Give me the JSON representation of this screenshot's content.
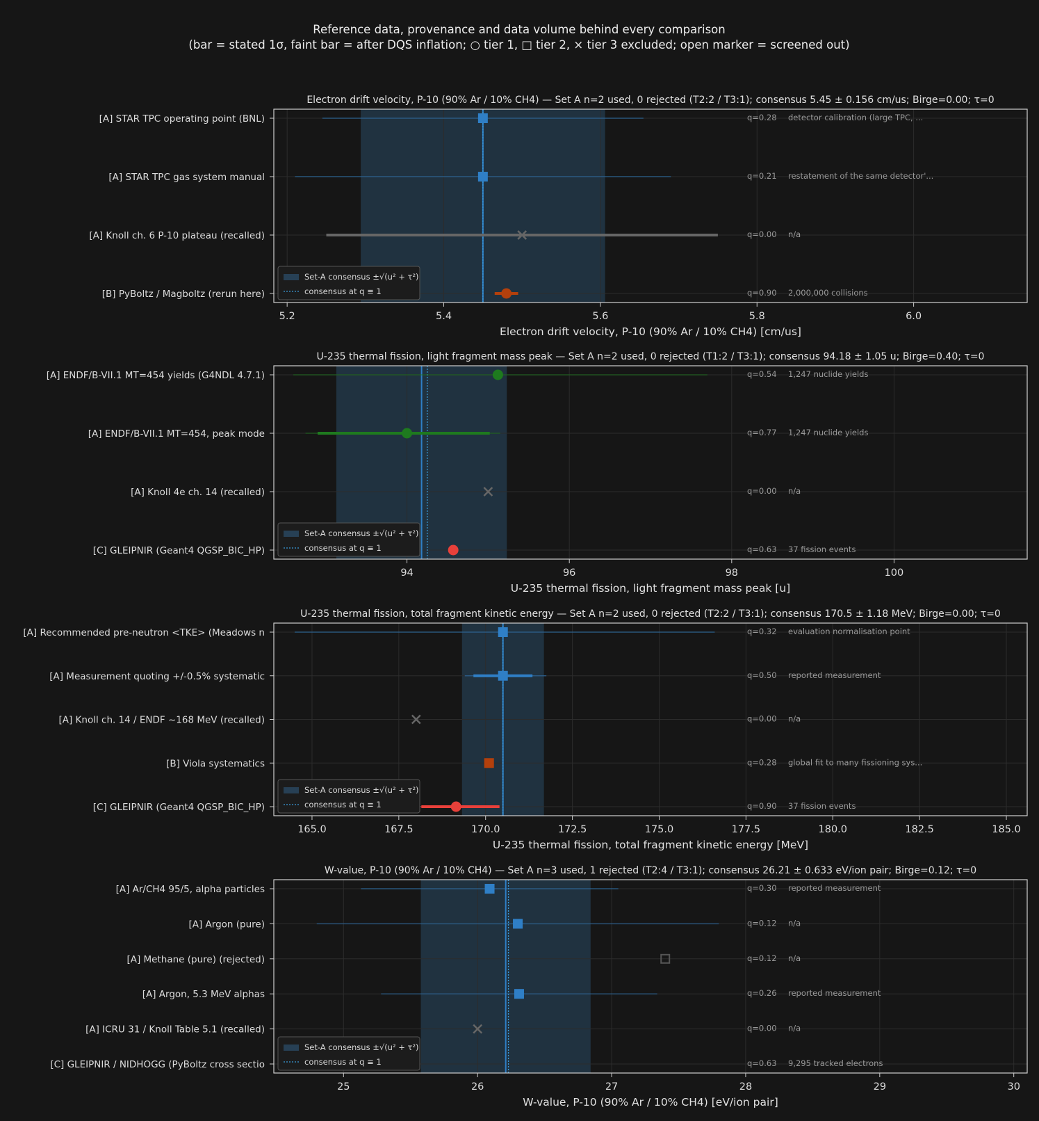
{
  "figure": {
    "title_line1": "Reference data, provenance and data volume behind every comparison",
    "title_line2": "(bar = stated 1σ, faint bar = after DQS inflation; ○ tier 1, □ tier 2, × tier 3 excluded; open marker = screened out)"
  },
  "legend": {
    "band_label": "Set-A consensus ±√(u² + τ²)",
    "line_label": "consensus at q ≡ 1"
  },
  "colors": {
    "background": "#161616",
    "tier_A": "#2f7fc6",
    "tier_B": "#b3400c",
    "tier_C": "#e8403a",
    "tier1_green": "#1e7a1e",
    "excluded": "#555555",
    "band": "#2a4a64"
  },
  "chart_data": [
    {
      "type": "forest",
      "title": "Electron drift velocity, P-10 (90% Ar / 10% CH4) — Set A n=2 used, 0 rejected (T2:2 / T3:1);  consensus 5.45 ± 0.156 cm/us;  Birge=0.00;  τ=0",
      "xlabel": "Electron drift velocity, P-10 (90% Ar / 10% CH4)  [cm/us]",
      "xlim": [
        5.183,
        6.145
      ],
      "xticks": [
        5.2,
        5.4,
        5.6,
        5.8,
        6.0
      ],
      "tick_labels": [
        "5.2",
        "5.4",
        "5.6",
        "5.8",
        "6.0"
      ],
      "consensus": 5.45,
      "consensus_unc": 0.156,
      "consensus_q1": 5.45,
      "grid": true,
      "legend_loc": "lower-left",
      "rows": [
        {
          "label": "[A] STAR TPC operating point (BNL)",
          "value": 5.45,
          "err": null,
          "inflated": [
            5.245,
            5.655
          ],
          "marker": "square",
          "color": "#2f7fc6",
          "q": "q=0.28",
          "note": "detector calibration (large TPC, ..."
        },
        {
          "label": "[A] STAR TPC gas system manual",
          "value": 5.45,
          "err": null,
          "inflated": [
            5.21,
            5.69
          ],
          "marker": "square",
          "color": "#2f7fc6",
          "q": "q=0.21",
          "note": "restatement of the same detector'..."
        },
        {
          "label": "[A] Knoll ch. 6 P-10 plateau (recalled)",
          "value": 5.5,
          "err": [
            5.25,
            5.75
          ],
          "inflated": null,
          "marker": "x",
          "color": "#666666",
          "q": "q=0.00",
          "note": "n/a"
        },
        {
          "label": "[B] PyBoltz / Magboltz (rerun here)",
          "value": 5.48,
          "err": [
            5.465,
            5.495
          ],
          "inflated": null,
          "marker": "circle",
          "color": "#b3400c",
          "q": "q=0.90",
          "note": "2,000,000 collisions"
        }
      ]
    },
    {
      "type": "forest",
      "title": "U-235 thermal fission, light fragment mass peak — Set A n=2 used, 0 rejected (T1:2 / T3:1);  consensus 94.18 ± 1.05 u;  Birge=0.40;  τ=0",
      "xlabel": "U-235 thermal fission, light fragment mass peak  [u]",
      "xlim": [
        92.36,
        101.64
      ],
      "xticks": [
        94,
        96,
        98,
        100
      ],
      "tick_labels": [
        "94",
        "96",
        "98",
        "100"
      ],
      "consensus": 94.18,
      "consensus_unc": 1.05,
      "consensus_q1": 94.25,
      "grid": true,
      "legend_loc": "lower-left",
      "rows": [
        {
          "label": "[A] ENDF/B-VII.1 MT=454 yields (G4NDL 4.7.1)",
          "value": 95.12,
          "err": null,
          "inflated": [
            92.6,
            97.7
          ],
          "marker": "circle",
          "color": "#1e7a1e",
          "q": "q=0.54",
          "note": "1,247 nuclide yields"
        },
        {
          "label": "[A] ENDF/B-VII.1 MT=454, peak mode",
          "value": 94.0,
          "err": [
            92.9,
            95.02
          ],
          "inflated": [
            92.75,
            95.15
          ],
          "marker": "circle",
          "color": "#1e7a1e",
          "q": "q=0.77",
          "note": "1,247 nuclide yields"
        },
        {
          "label": "[A] Knoll 4e ch. 14 (recalled)",
          "value": 95.0,
          "err": null,
          "inflated": null,
          "marker": "x",
          "color": "#666666",
          "q": "q=0.00",
          "note": "n/a"
        },
        {
          "label": "[C] GLEIPNIR (Geant4 QGSP_BIC_HP)",
          "value": 94.57,
          "err": null,
          "inflated": null,
          "marker": "circle",
          "color": "#e8403a",
          "q": "q=0.63",
          "note": "37 fission events"
        }
      ]
    },
    {
      "type": "forest",
      "title": "U-235 thermal fission, total fragment kinetic energy — Set A n=2 used, 0 rejected (T2:2 / T3:1);  consensus 170.5 ± 1.18 MeV;  Birge=0.00;  τ=0",
      "xlabel": "U-235 thermal fission, total fragment kinetic energy  [MeV]",
      "xlim": [
        163.9,
        185.6
      ],
      "xticks": [
        165,
        167.5,
        170,
        172.5,
        175,
        177.5,
        180,
        182.5,
        185
      ],
      "tick_labels": [
        "165.0",
        "167.5",
        "170.0",
        "172.5",
        "175.0",
        "177.5",
        "180.0",
        "182.5",
        "185.0"
      ],
      "consensus": 170.5,
      "consensus_unc": 1.18,
      "consensus_q1": 170.5,
      "grid": true,
      "legend_loc": "lower-left",
      "rows": [
        {
          "label": "[A] Recommended pre-neutron <TKE> (Meadows n",
          "value": 170.5,
          "err": null,
          "inflated": [
            164.5,
            176.6
          ],
          "marker": "square",
          "color": "#2f7fc6",
          "q": "q=0.32",
          "note": "evaluation normalisation point"
        },
        {
          "label": "[A] Measurement quoting +/-0.5% systematic",
          "value": 170.5,
          "err": [
            169.65,
            171.35
          ],
          "inflated": [
            169.4,
            171.75
          ],
          "marker": "square",
          "color": "#2f7fc6",
          "q": "q=0.50",
          "note": "reported measurement"
        },
        {
          "label": "[A] Knoll ch. 14 / ENDF ~168 MeV (recalled)",
          "value": 168.0,
          "err": null,
          "inflated": null,
          "marker": "x",
          "color": "#666666",
          "q": "q=0.00",
          "note": "n/a"
        },
        {
          "label": "[B] Viola systematics",
          "value": 170.1,
          "err": null,
          "inflated": null,
          "marker": "square",
          "color": "#b3400c",
          "q": "q=0.28",
          "note": "global fit to many fissioning sys..."
        },
        {
          "label": "[C] GLEIPNIR (Geant4 QGSP_BIC_HP)",
          "value": 169.15,
          "err": [
            168.15,
            170.4
          ],
          "inflated": [
            167.95,
            170.4
          ],
          "marker": "circle",
          "color": "#e8403a",
          "q": "q=0.90",
          "note": "37 fission events"
        }
      ]
    },
    {
      "type": "forest",
      "title": "W-value, P-10 (90% Ar / 10% CH4) — Set A n=3 used, 1 rejected (T2:4 / T3:1);  consensus 26.21 ± 0.633 eV/ion pair;  Birge=0.12;  τ=0",
      "xlabel": "W-value, P-10 (90% Ar / 10% CH4)  [eV/ion pair]",
      "xlim": [
        24.48,
        30.1
      ],
      "xticks": [
        25,
        26,
        27,
        28,
        29,
        30
      ],
      "tick_labels": [
        "25",
        "26",
        "27",
        "28",
        "29",
        "30"
      ],
      "consensus": 26.21,
      "consensus_unc": 0.633,
      "consensus_q1": 26.23,
      "grid": true,
      "legend_loc": "lower-left",
      "rows": [
        {
          "label": "[A] Ar/CH4 95/5, alpha particles",
          "value": 26.09,
          "err": null,
          "inflated": [
            25.13,
            27.05
          ],
          "marker": "square",
          "color": "#2f7fc6",
          "q": "q=0.30",
          "note": "reported measurement"
        },
        {
          "label": "[A] Argon (pure)",
          "value": 26.3,
          "err": null,
          "inflated": [
            24.8,
            27.8
          ],
          "marker": "square",
          "color": "#2f7fc6",
          "q": "q=0.12",
          "note": "n/a"
        },
        {
          "label": "[A] Methane (pure)  (rejected)",
          "value": 27.4,
          "err": null,
          "inflated": null,
          "marker": "open-square",
          "color": "#555555",
          "q": "q=0.12",
          "note": "n/a"
        },
        {
          "label": "[A] Argon, 5.3 MeV alphas",
          "value": 26.31,
          "err": null,
          "inflated": [
            25.28,
            27.34
          ],
          "marker": "square",
          "color": "#2f7fc6",
          "q": "q=0.26",
          "note": "reported measurement"
        },
        {
          "label": "[A] ICRU 31 / Knoll Table 5.1 (recalled)",
          "value": 26.0,
          "err": null,
          "inflated": null,
          "marker": "x",
          "color": "#666666",
          "q": "q=0.00",
          "note": "n/a"
        },
        {
          "label": "[C] GLEIPNIR / NIDHOGG (PyBoltz cross sectio",
          "value": 24.63,
          "err": null,
          "inflated": null,
          "marker": "circle-faded",
          "color": "#e8403a",
          "q": "q=0.63",
          "note": "9,295 tracked electrons"
        }
      ]
    }
  ]
}
